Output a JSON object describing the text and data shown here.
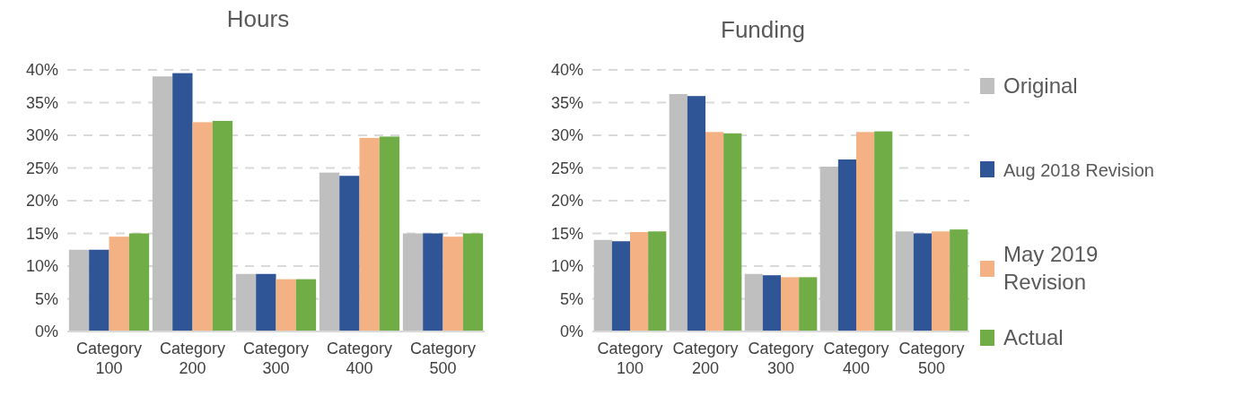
{
  "chart_data": [
    {
      "type": "bar",
      "title": "Hours",
      "categories": [
        "Category 100",
        "Category 200",
        "Category 300",
        "Category 400",
        "Category 500"
      ],
      "series": [
        {
          "color": "#bfbfbf",
          "values": [
            12.5,
            39,
            8.8,
            24.3,
            15
          ]
        },
        {
          "color": "#2f5597",
          "values": [
            12.5,
            39.5,
            8.8,
            23.8,
            15
          ]
        },
        {
          "color": "#f4b183",
          "values": [
            14.5,
            32,
            8,
            29.6,
            14.5
          ]
        },
        {
          "color": "#70ad47",
          "values": [
            15,
            32.2,
            8,
            29.8,
            15
          ]
        }
      ],
      "ylim": [
        0,
        40
      ],
      "yticks": [
        {
          "value": 0,
          "label": "0%"
        },
        {
          "value": 5,
          "label": "5%"
        },
        {
          "value": 10,
          "label": "10%"
        },
        {
          "value": 15,
          "label": "15%"
        },
        {
          "value": 20,
          "label": "20%"
        },
        {
          "value": 25,
          "label": "25%"
        },
        {
          "value": 30,
          "label": "30%"
        },
        {
          "value": 35,
          "label": "35%"
        },
        {
          "value": 40,
          "label": "40%"
        }
      ],
      "grid": "y"
    },
    {
      "type": "bar",
      "title": "Funding",
      "categories": [
        "Category 100",
        "Category 200",
        "Category 300",
        "Category 400",
        "Category 500"
      ],
      "series": [
        {
          "name": "Original",
          "color": "#bfbfbf",
          "values": [
            14,
            36.3,
            8.8,
            25.2,
            15.3
          ]
        },
        {
          "name": "Aug 2018 Revision",
          "color": "#2f5597",
          "values": [
            13.8,
            36,
            8.6,
            26.3,
            15
          ]
        },
        {
          "name": "May 2019 Revision",
          "color": "#f4b183",
          "values": [
            15.2,
            30.5,
            8.3,
            30.5,
            15.3
          ]
        },
        {
          "name": "Actual",
          "color": "#70ad47",
          "values": [
            15.3,
            30.3,
            8.3,
            30.6,
            15.6
          ]
        }
      ],
      "ylim": [
        0,
        40
      ],
      "yticks": [
        {
          "value": 0,
          "label": "0%"
        },
        {
          "value": 5,
          "label": "5%"
        },
        {
          "value": 10,
          "label": "10%"
        },
        {
          "value": 15,
          "label": "15%"
        },
        {
          "value": 20,
          "label": "20%"
        },
        {
          "value": 25,
          "label": "25%"
        },
        {
          "value": 30,
          "label": "30%"
        },
        {
          "value": 35,
          "label": "35%"
        },
        {
          "value": 40,
          "label": "40%"
        }
      ],
      "grid": "y",
      "legend": "right"
    }
  ]
}
